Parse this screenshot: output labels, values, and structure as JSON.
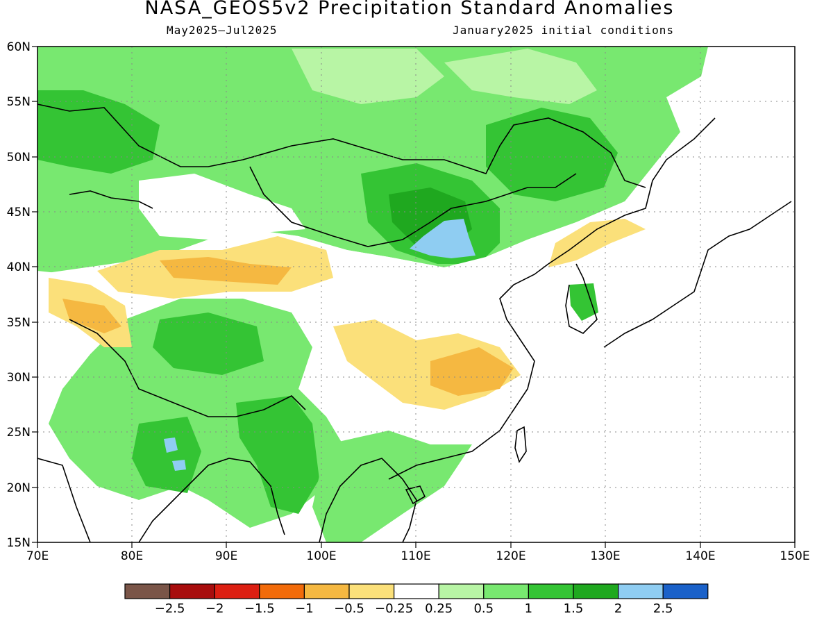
{
  "header": {
    "title": "NASA_GEOS5v2 Precipitation Standard Anomalies",
    "period": "May2025–Jul2025",
    "init": "January2025 initial conditions"
  },
  "map": {
    "lon_labels": [
      "70E",
      "80E",
      "90E",
      "100E",
      "110E",
      "120E",
      "130E",
      "140E",
      "150E"
    ],
    "lat_labels": [
      "60N",
      "55N",
      "50N",
      "45N",
      "40N",
      "35N",
      "30N",
      "25N",
      "20N",
      "15N"
    ],
    "lon_range": [
      70,
      150
    ],
    "lat_range": [
      15,
      60
    ],
    "grid": "dotted"
  },
  "colorbar": {
    "colors": [
      "#7a5548",
      "#a80d0d",
      "#dc1f12",
      "#f26b0a",
      "#f5b841",
      "#fbe07a",
      "#ffffff",
      "#b8f5a5",
      "#78e870",
      "#34c434",
      "#1fa81f",
      "#8fcdf2",
      "#1a61c9"
    ],
    "labels": [
      "−2.5",
      "−2",
      "−1.5",
      "−1",
      "−0.5",
      "−0.25",
      "0.25",
      "0.5",
      "1",
      "1.5",
      "2",
      "2.5"
    ]
  },
  "legend_colors": {
    "neg_strong": "#f5b841",
    "neg_weak": "#fbe07a",
    "pos_weak": "#b8f5a5",
    "pos_mid": "#78e870",
    "pos_strong": "#34c434",
    "pos_vstrong": "#1fa81f",
    "pos_blue": "#8fcdf2"
  }
}
